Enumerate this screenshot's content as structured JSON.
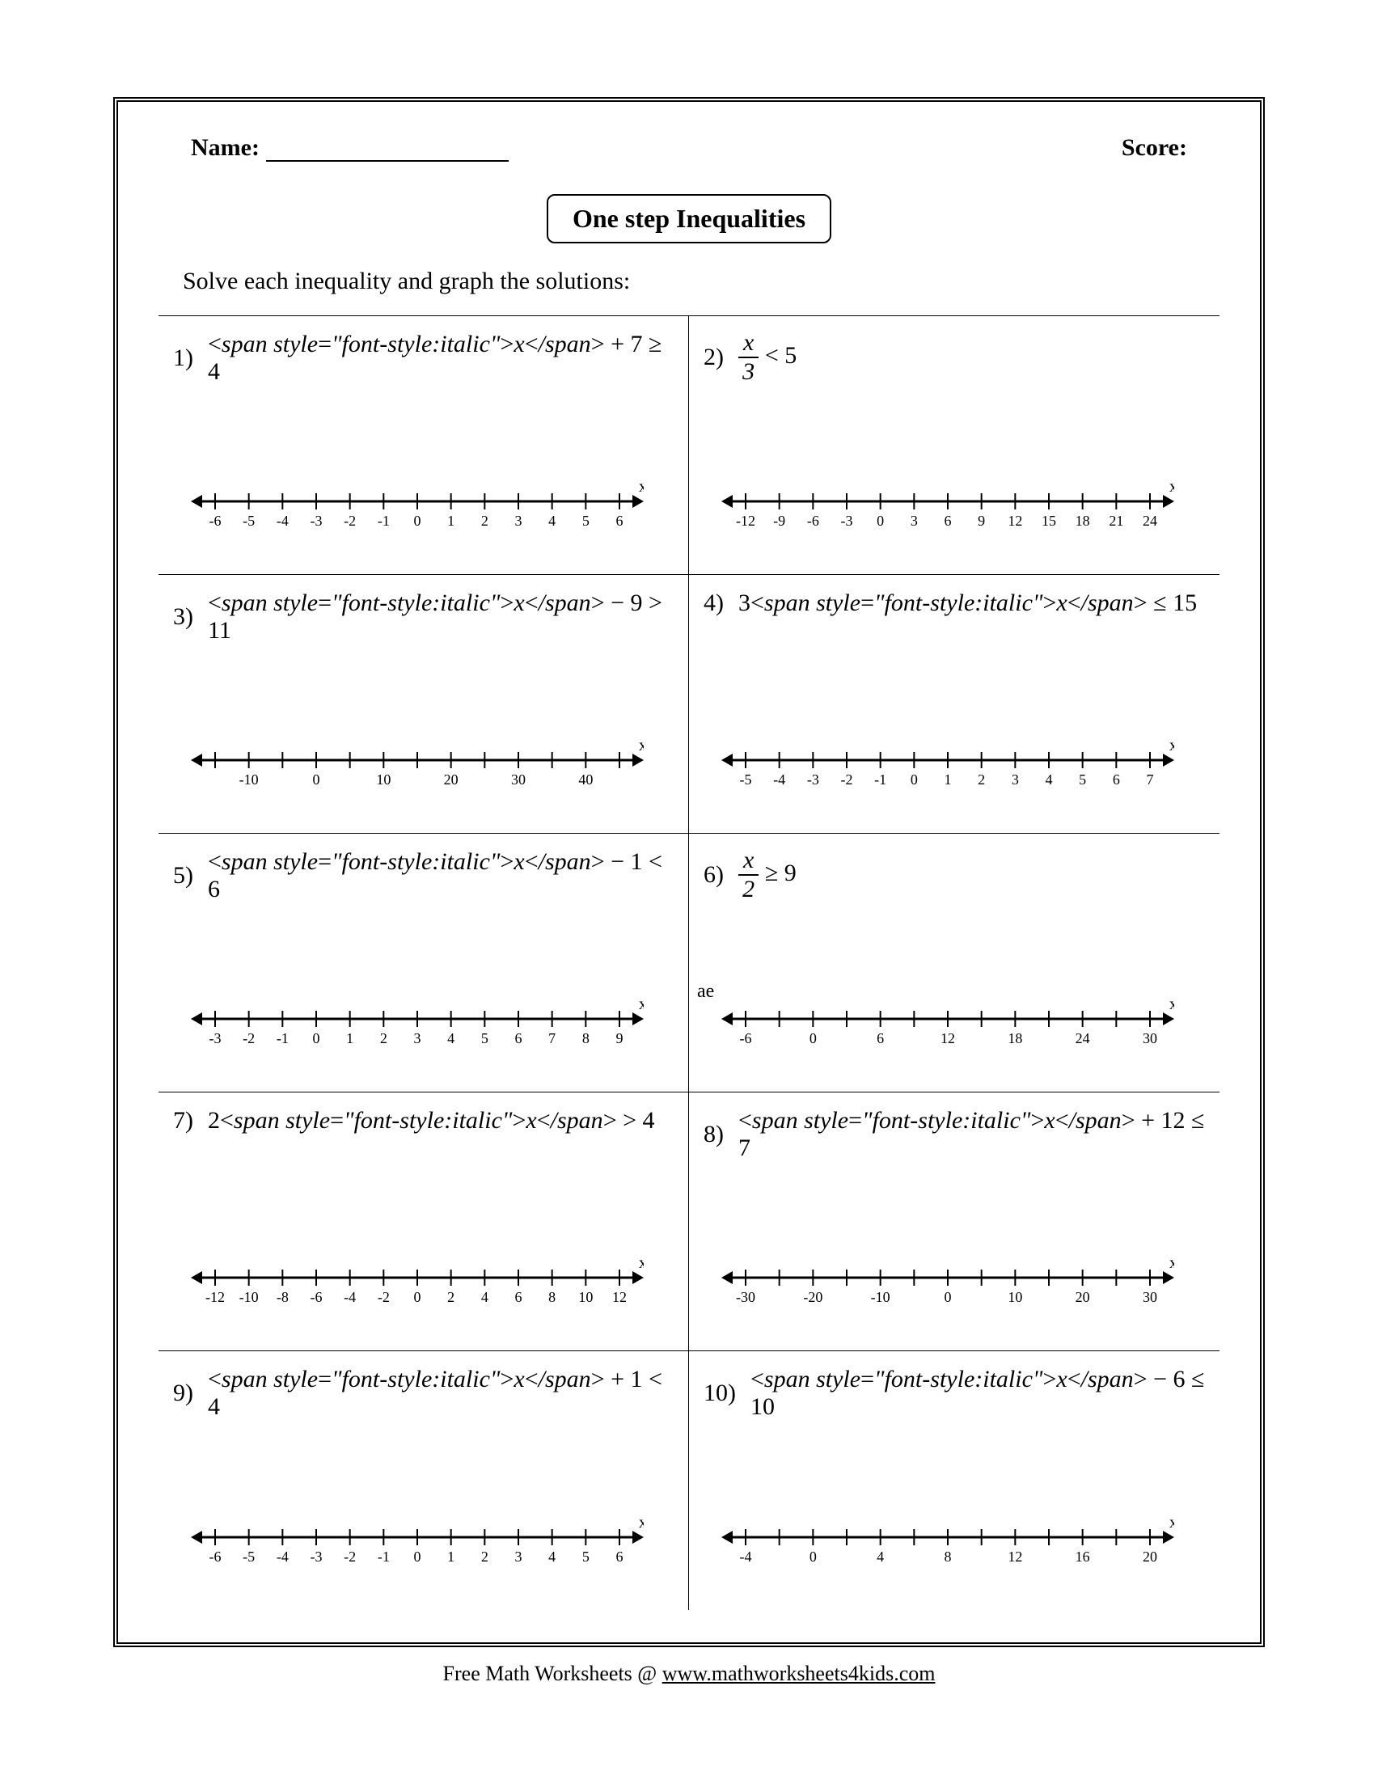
{
  "header": {
    "name_label": "Name:",
    "score_label": "Score:"
  },
  "title": "One step Inequalities",
  "instructions": "Solve each inequality and graph the solutions:",
  "axis_label": "x",
  "problems": [
    {
      "n": "1)",
      "expr_html": "x + 7 ≥ 4",
      "ticks": [
        "-6",
        "-5",
        "-4",
        "-3",
        "-2",
        "-1",
        "0",
        "1",
        "2",
        "3",
        "4",
        "5",
        "6"
      ],
      "label_every": 1
    },
    {
      "n": "2)",
      "expr_html": "FRAC:x:3 < 5",
      "ticks": [
        "-12",
        "-9",
        "-6",
        "-3",
        "0",
        "3",
        "6",
        "9",
        "12",
        "15",
        "18",
        "21",
        "24"
      ],
      "label_every": 1
    },
    {
      "n": "3)",
      "expr_html": "x − 9 > 11",
      "ticks": [
        "",
        "-10",
        "",
        "0",
        "",
        "10",
        "",
        "20",
        "",
        "30",
        "",
        "40",
        ""
      ],
      "label_every": 1
    },
    {
      "n": "4)",
      "expr_html": "3x ≤ 15",
      "ticks": [
        "-5",
        "-4",
        "-3",
        "-2",
        "-1",
        "0",
        "1",
        "2",
        "3",
        "4",
        "5",
        "6",
        "7"
      ],
      "label_every": 1
    },
    {
      "n": "5)",
      "expr_html": "x − 1 < 6",
      "ticks": [
        "-3",
        "-2",
        "-1",
        "0",
        "1",
        "2",
        "3",
        "4",
        "5",
        "6",
        "7",
        "8",
        "9"
      ],
      "label_every": 1
    },
    {
      "n": "6)",
      "expr_html": "FRAC:x:2 ≥ 9",
      "ticks": [
        "-6",
        "",
        "0",
        "",
        "6",
        "",
        "12",
        "",
        "18",
        "",
        "24",
        "",
        "30"
      ],
      "label_every": 1,
      "stray": "ae"
    },
    {
      "n": "7)",
      "expr_html": "2x > 4",
      "ticks": [
        "-12",
        "-10",
        "-8",
        "-6",
        "-4",
        "-2",
        "0",
        "2",
        "4",
        "6",
        "8",
        "10",
        "12"
      ],
      "label_every": 1
    },
    {
      "n": "8)",
      "expr_html": "x + 12 ≤ 7",
      "ticks": [
        "-30",
        "",
        "-20",
        "",
        "-10",
        "",
        "0",
        "",
        "10",
        "",
        "20",
        "",
        "30"
      ],
      "label_every": 1
    },
    {
      "n": "9)",
      "expr_html": "x + 1 < 4",
      "ticks": [
        "-6",
        "-5",
        "-4",
        "-3",
        "-2",
        "-1",
        "0",
        "1",
        "2",
        "3",
        "4",
        "5",
        "6"
      ],
      "label_every": 1
    },
    {
      "n": "10)",
      "expr_html": "x − 6 ≤ 10",
      "ticks": [
        "-4",
        "",
        "0",
        "",
        "4",
        "",
        "8",
        "",
        "12",
        "",
        "16",
        "",
        "20"
      ],
      "label_every": 1
    }
  ],
  "footer": {
    "prefix": "Free Math Worksheets @ ",
    "link_text": "www.mathworksheets4kids.com"
  },
  "style": {
    "line_color": "#000000",
    "tick_font_size": 18,
    "arrow_size": 14
  }
}
